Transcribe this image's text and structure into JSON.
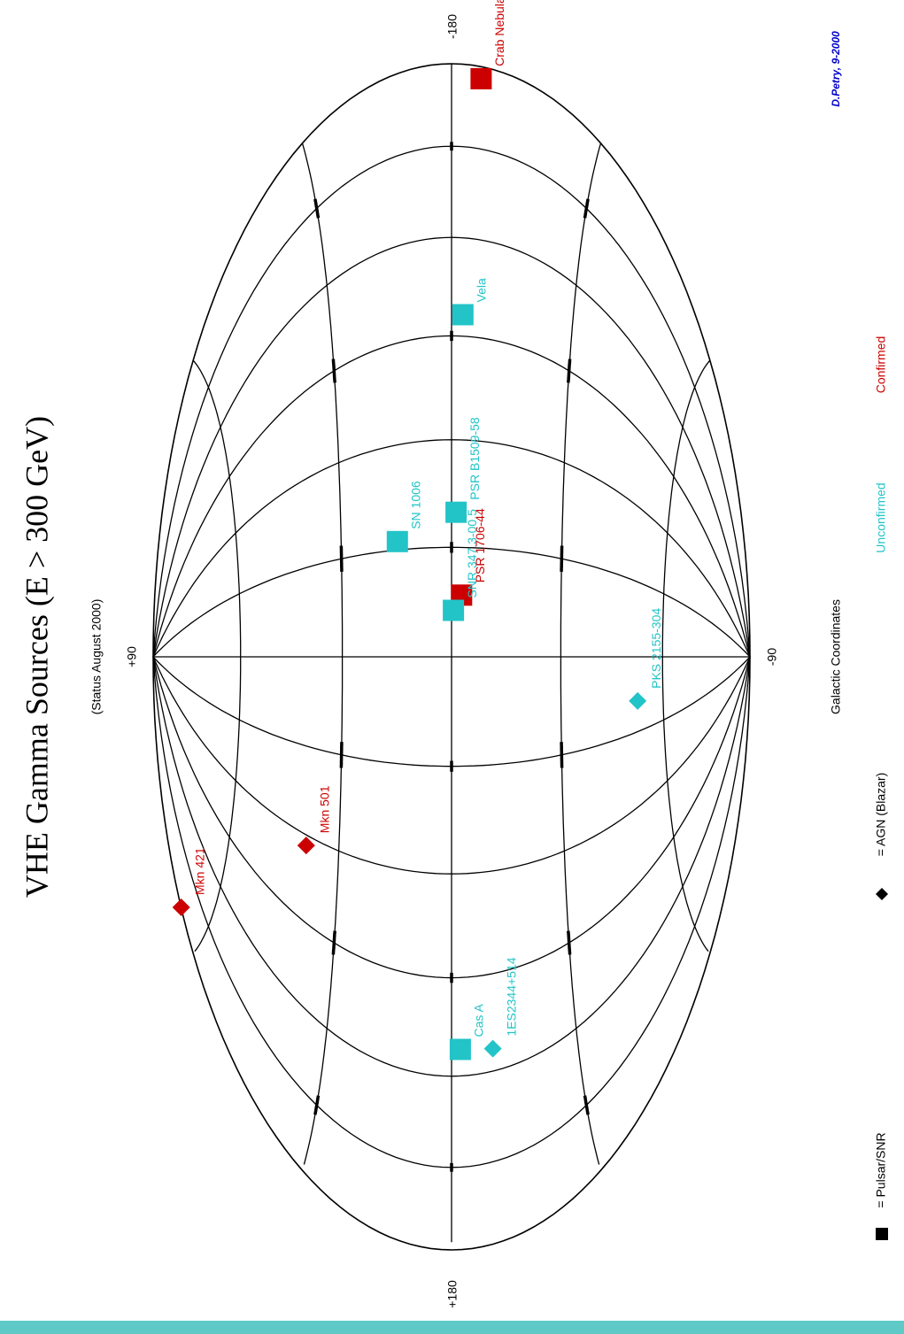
{
  "title": "VHE Gamma Sources (E > 300 GeV)",
  "subtitle": "(Status August 2000)",
  "coordinate_label": "Galactic Coordinates",
  "credit": "D.Petry, 9-2000",
  "axis_labels": {
    "top": "+90",
    "bottom": "-90",
    "left": "+180",
    "right": "-180"
  },
  "legend": {
    "square": "= Pulsar/SNR",
    "diamond": "= AGN (Blazar)",
    "unconfirmed": "Unconfirmed",
    "confirmed": "Confirmed"
  },
  "colors": {
    "confirmed": "#cc0000",
    "unconfirmed": "#22c4c8",
    "grid": "#000000",
    "credit": "#0000cc",
    "bar": "#5ec9c6"
  },
  "sources": [
    {
      "name": "Crab Nebula",
      "type": "square",
      "status": "confirmed",
      "l": 184.6,
      "b": -5.8
    },
    {
      "name": "Vela",
      "type": "square",
      "status": "unconfirmed",
      "l": 263.6,
      "b": -2.8
    },
    {
      "name": "PSR B1509-58",
      "type": "square",
      "status": "unconfirmed",
      "l": 320.3,
      "b": -1.2
    },
    {
      "name": "PSR 1706-44",
      "type": "square",
      "status": "confirmed",
      "l": 343.1,
      "b": -2.7
    },
    {
      "name": "SN 1006",
      "type": "square",
      "status": "unconfirmed",
      "l": 327.6,
      "b": 14.6
    },
    {
      "name": "SNR 347.3-00.5",
      "type": "square",
      "status": "unconfirmed",
      "l": 347.3,
      "b": -0.5
    },
    {
      "name": "PKS 2155-304",
      "type": "diamond",
      "status": "unconfirmed",
      "l": 17.7,
      "b": -52.2
    },
    {
      "name": "Mkn 501",
      "type": "diamond",
      "status": "confirmed",
      "l": 63.6,
      "b": 38.9
    },
    {
      "name": "Mkn 421",
      "type": "diamond",
      "status": "confirmed",
      "l": 179.8,
      "b": 65.0
    },
    {
      "name": "Cas A",
      "type": "square",
      "status": "unconfirmed",
      "l": 111.7,
      "b": -2.1
    },
    {
      "name": "1ES2344+514",
      "type": "diamond",
      "status": "unconfirmed",
      "l": 112.9,
      "b": -9.9
    }
  ]
}
